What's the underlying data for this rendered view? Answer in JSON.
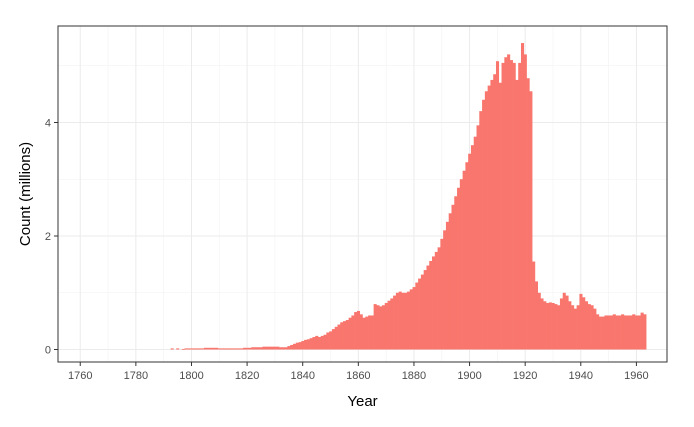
{
  "chart_data": {
    "type": "bar",
    "title": "",
    "xlabel": "Year",
    "ylabel": "Count (millions)",
    "xlim": [
      1752,
      1971
    ],
    "ylim": [
      -0.22,
      5.7
    ],
    "grid": true,
    "legend": "none",
    "bar_color": "#F8766D",
    "x_ticks": [
      {
        "value": 1760,
        "label": "1760"
      },
      {
        "value": 1780,
        "label": "1780"
      },
      {
        "value": 1800,
        "label": "1800"
      },
      {
        "value": 1820,
        "label": "1820"
      },
      {
        "value": 1840,
        "label": "1840"
      },
      {
        "value": 1860,
        "label": "1860"
      },
      {
        "value": 1880,
        "label": "1880"
      },
      {
        "value": 1900,
        "label": "1900"
      },
      {
        "value": 1920,
        "label": "1920"
      },
      {
        "value": 1940,
        "label": "1940"
      },
      {
        "value": 1960,
        "label": "1960"
      }
    ],
    "y_ticks": [
      {
        "value": 0,
        "label": "0"
      },
      {
        "value": 2,
        "label": "2"
      },
      {
        "value": 4,
        "label": "4"
      }
    ],
    "series": [
      {
        "values": [
          [
            1793,
            0.02
          ],
          [
            1795,
            0.02
          ],
          [
            1797,
            0.01
          ],
          [
            1798,
            0.02
          ],
          [
            1799,
            0.02
          ],
          [
            1800,
            0.02
          ],
          [
            1801,
            0.02
          ],
          [
            1802,
            0.02
          ],
          [
            1803,
            0.02
          ],
          [
            1804,
            0.02
          ],
          [
            1805,
            0.03
          ],
          [
            1806,
            0.03
          ],
          [
            1807,
            0.03
          ],
          [
            1808,
            0.03
          ],
          [
            1809,
            0.03
          ],
          [
            1810,
            0.02
          ],
          [
            1811,
            0.02
          ],
          [
            1812,
            0.02
          ],
          [
            1813,
            0.02
          ],
          [
            1814,
            0.02
          ],
          [
            1815,
            0.02
          ],
          [
            1816,
            0.02
          ],
          [
            1817,
            0.02
          ],
          [
            1818,
            0.02
          ],
          [
            1819,
            0.03
          ],
          [
            1820,
            0.03
          ],
          [
            1821,
            0.03
          ],
          [
            1822,
            0.04
          ],
          [
            1823,
            0.04
          ],
          [
            1824,
            0.04
          ],
          [
            1825,
            0.04
          ],
          [
            1826,
            0.05
          ],
          [
            1827,
            0.05
          ],
          [
            1828,
            0.05
          ],
          [
            1829,
            0.05
          ],
          [
            1830,
            0.05
          ],
          [
            1831,
            0.05
          ],
          [
            1832,
            0.04
          ],
          [
            1833,
            0.04
          ],
          [
            1834,
            0.04
          ],
          [
            1835,
            0.06
          ],
          [
            1836,
            0.08
          ],
          [
            1837,
            0.1
          ],
          [
            1838,
            0.12
          ],
          [
            1839,
            0.13
          ],
          [
            1840,
            0.15
          ],
          [
            1841,
            0.17
          ],
          [
            1842,
            0.18
          ],
          [
            1843,
            0.2
          ],
          [
            1844,
            0.22
          ],
          [
            1845,
            0.24
          ],
          [
            1846,
            0.22
          ],
          [
            1847,
            0.24
          ],
          [
            1848,
            0.26
          ],
          [
            1849,
            0.3
          ],
          [
            1850,
            0.32
          ],
          [
            1851,
            0.36
          ],
          [
            1852,
            0.4
          ],
          [
            1853,
            0.44
          ],
          [
            1854,
            0.48
          ],
          [
            1855,
            0.5
          ],
          [
            1856,
            0.52
          ],
          [
            1857,
            0.56
          ],
          [
            1858,
            0.6
          ],
          [
            1859,
            0.66
          ],
          [
            1860,
            0.68
          ],
          [
            1861,
            0.62
          ],
          [
            1862,
            0.56
          ],
          [
            1863,
            0.58
          ],
          [
            1864,
            0.6
          ],
          [
            1865,
            0.6
          ],
          [
            1866,
            0.8
          ],
          [
            1867,
            0.78
          ],
          [
            1868,
            0.76
          ],
          [
            1869,
            0.78
          ],
          [
            1870,
            0.82
          ],
          [
            1871,
            0.86
          ],
          [
            1872,
            0.9
          ],
          [
            1873,
            0.95
          ],
          [
            1874,
            1.0
          ],
          [
            1875,
            1.02
          ],
          [
            1876,
            1.0
          ],
          [
            1877,
            1.0
          ],
          [
            1878,
            1.02
          ],
          [
            1879,
            1.06
          ],
          [
            1880,
            1.1
          ],
          [
            1881,
            1.18
          ],
          [
            1882,
            1.25
          ],
          [
            1883,
            1.32
          ],
          [
            1884,
            1.4
          ],
          [
            1885,
            1.48
          ],
          [
            1886,
            1.56
          ],
          [
            1887,
            1.64
          ],
          [
            1888,
            1.72
          ],
          [
            1889,
            1.8
          ],
          [
            1890,
            1.95
          ],
          [
            1891,
            2.1
          ],
          [
            1892,
            2.25
          ],
          [
            1893,
            2.4
          ],
          [
            1894,
            2.55
          ],
          [
            1895,
            2.7
          ],
          [
            1896,
            2.85
          ],
          [
            1897,
            3.0
          ],
          [
            1898,
            3.15
          ],
          [
            1899,
            3.3
          ],
          [
            1900,
            3.45
          ],
          [
            1901,
            3.6
          ],
          [
            1902,
            3.75
          ],
          [
            1903,
            3.95
          ],
          [
            1904,
            4.2
          ],
          [
            1905,
            4.4
          ],
          [
            1906,
            4.55
          ],
          [
            1907,
            4.65
          ],
          [
            1908,
            4.75
          ],
          [
            1909,
            4.85
          ],
          [
            1910,
            5.08
          ],
          [
            1911,
            4.7
          ],
          [
            1912,
            5.05
          ],
          [
            1913,
            5.15
          ],
          [
            1914,
            5.2
          ],
          [
            1915,
            5.1
          ],
          [
            1916,
            5.05
          ],
          [
            1917,
            4.75
          ],
          [
            1918,
            5.05
          ],
          [
            1919,
            5.4
          ],
          [
            1920,
            5.2
          ],
          [
            1921,
            4.78
          ],
          [
            1922,
            4.55
          ],
          [
            1923,
            1.55
          ],
          [
            1924,
            1.2
          ],
          [
            1925,
            1.0
          ],
          [
            1926,
            0.9
          ],
          [
            1927,
            0.85
          ],
          [
            1928,
            0.82
          ],
          [
            1929,
            0.83
          ],
          [
            1930,
            0.82
          ],
          [
            1931,
            0.8
          ],
          [
            1932,
            0.78
          ],
          [
            1933,
            0.9
          ],
          [
            1934,
            1.0
          ],
          [
            1935,
            0.95
          ],
          [
            1936,
            0.85
          ],
          [
            1937,
            0.78
          ],
          [
            1938,
            0.72
          ],
          [
            1939,
            0.78
          ],
          [
            1940,
            0.98
          ],
          [
            1941,
            0.92
          ],
          [
            1942,
            0.85
          ],
          [
            1943,
            0.8
          ],
          [
            1944,
            0.78
          ],
          [
            1945,
            0.72
          ],
          [
            1946,
            0.62
          ],
          [
            1947,
            0.58
          ],
          [
            1948,
            0.58
          ],
          [
            1949,
            0.6
          ],
          [
            1950,
            0.6
          ],
          [
            1951,
            0.6
          ],
          [
            1952,
            0.62
          ],
          [
            1953,
            0.6
          ],
          [
            1954,
            0.6
          ],
          [
            1955,
            0.62
          ],
          [
            1956,
            0.6
          ],
          [
            1957,
            0.6
          ],
          [
            1958,
            0.6
          ],
          [
            1959,
            0.62
          ],
          [
            1960,
            0.6
          ],
          [
            1961,
            0.6
          ],
          [
            1962,
            0.65
          ],
          [
            1963,
            0.62
          ]
        ]
      }
    ]
  }
}
